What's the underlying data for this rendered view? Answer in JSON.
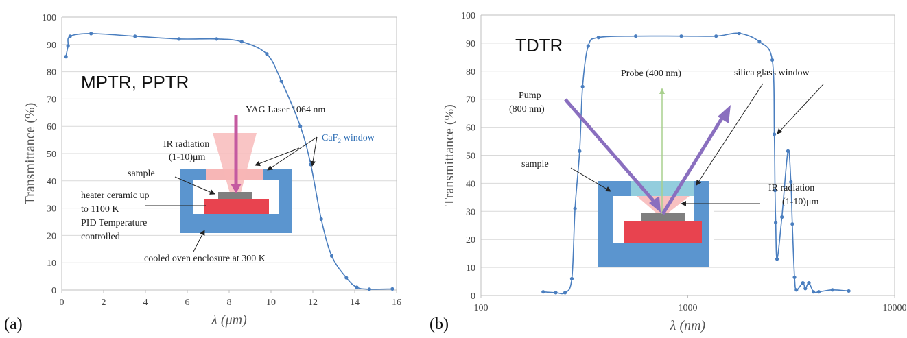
{
  "panel_a": {
    "label": "(a)",
    "tag": "MPTR, PPTR",
    "annotations": {
      "laser": "YAG Laser 1064 nm",
      "ir1": "IR radiation",
      "ir2": "(1-10)μm",
      "window": "CaF₂ window",
      "sample": "sample",
      "heater1": "heater ceramic up",
      "heater2": "to 1100 K",
      "heater3": "PID Temperature",
      "heater4": "controlled",
      "enclosure": "cooled oven enclosure at 300 K"
    }
  },
  "panel_b": {
    "label": "(b)",
    "tag": "TDTR",
    "annotations": {
      "probe": "Probe (400 nm)",
      "pump1": "Pump",
      "pump2": "(800 nm)",
      "window": "silica glass window",
      "sample": "sample",
      "ir1": "IR radiation",
      "ir2": "(1-10)μm"
    }
  },
  "colors": {
    "line": "#4a7ebf",
    "grid": "#d9d9d9",
    "enclosure": "#5b95cf",
    "heater": "#e8434f",
    "sample": "#7f7f7f",
    "beam": "#f7b6b6",
    "pump": "#8a6fbf",
    "probe": "#a8d08d",
    "silica": "#93cddd",
    "laser": "#c45aa0"
  },
  "chart_data": [
    {
      "type": "line",
      "xlabel": "λ (μm)",
      "ylabel": "Transmittance (%)",
      "xlim": [
        0,
        16
      ],
      "ylim": [
        0,
        100
      ],
      "xticks": [
        "0",
        "2",
        "4",
        "6",
        "8",
        "10",
        "12",
        "14",
        "16"
      ],
      "yticks": [
        "0",
        "10",
        "20",
        "30",
        "40",
        "50",
        "60",
        "70",
        "80",
        "90",
        "100"
      ],
      "grid": "horizontal",
      "series": [
        {
          "x": [
            0.2,
            0.3,
            0.4,
            1.4,
            3.5,
            5.6,
            7.4,
            8.6,
            9.8,
            10.5,
            11.4,
            11.9,
            12.4,
            12.9,
            13.6,
            14.1,
            14.7,
            15.8
          ],
          "y": [
            85.5,
            89.5,
            93,
            94,
            93,
            92,
            92,
            91,
            86.5,
            76.5,
            60,
            46,
            26,
            12.5,
            4.5,
            1,
            0.3,
            0.4
          ]
        }
      ]
    },
    {
      "type": "line",
      "xscale": "log",
      "xlabel": "λ (nm)",
      "ylabel": "Transmittance (%)",
      "xlim": [
        100,
        10000
      ],
      "ylim": [
        0,
        100
      ],
      "xticks": [
        "100",
        "1000",
        "10000"
      ],
      "yticks": [
        "0",
        "10",
        "20",
        "30",
        "40",
        "50",
        "60",
        "70",
        "80",
        "90",
        "100"
      ],
      "grid": "horizontal",
      "series": [
        {
          "x": [
            200,
            230,
            255,
            275,
            285,
            300,
            310,
            330,
            370,
            560,
            930,
            1370,
            1770,
            2220,
            2560,
            2620,
            2640,
            2660,
            2700,
            2850,
            3050,
            3150,
            3200,
            3280,
            3350,
            3600,
            3700,
            3850,
            4050,
            4300,
            5000,
            6000
          ],
          "y": [
            1.3,
            1,
            1,
            6,
            31,
            51.5,
            74.5,
            89,
            92,
            92.5,
            92.5,
            92.5,
            93.5,
            90.5,
            84,
            57.5,
            37.5,
            26,
            13,
            28,
            51.5,
            40.5,
            25.5,
            6.5,
            2,
            4.5,
            2.5,
            4.5,
            1.3,
            1.3,
            2,
            1.6
          ]
        }
      ]
    }
  ]
}
